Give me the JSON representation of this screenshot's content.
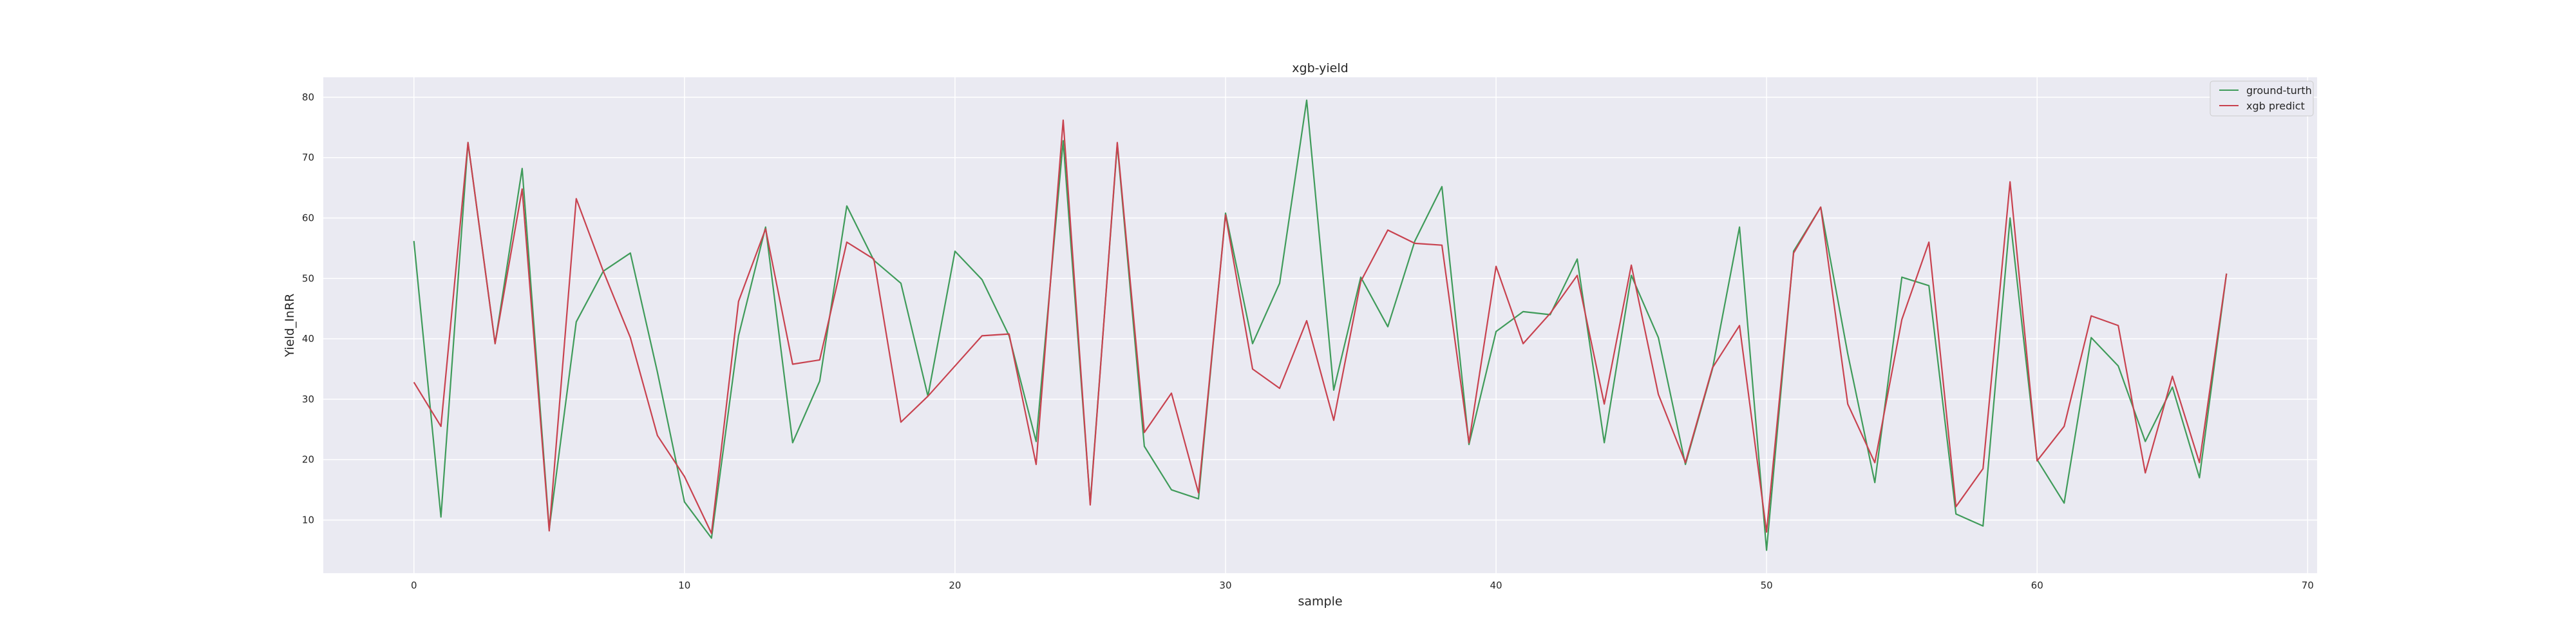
{
  "chart_data": {
    "type": "line",
    "title": "xgb-yield",
    "xlabel": "sample",
    "ylabel": "Yield_InRR",
    "xlim": [
      -3.35,
      70.35
    ],
    "ylim": [
      1.2,
      83.3
    ],
    "xticks": [
      0,
      10,
      20,
      30,
      40,
      50,
      60,
      70
    ],
    "yticks": [
      10,
      20,
      30,
      40,
      50,
      60,
      70,
      80
    ],
    "grid": true,
    "legend_position": "top-right",
    "x": [
      0,
      1,
      2,
      3,
      4,
      5,
      6,
      7,
      8,
      9,
      10,
      11,
      12,
      13,
      14,
      15,
      16,
      17,
      18,
      19,
      20,
      21,
      22,
      23,
      24,
      25,
      26,
      27,
      28,
      29,
      30,
      31,
      32,
      33,
      34,
      35,
      36,
      37,
      38,
      39,
      40,
      41,
      42,
      43,
      44,
      45,
      46,
      47,
      48,
      49,
      50,
      51,
      52,
      53,
      54,
      55,
      56,
      57,
      58,
      59,
      60,
      61,
      62,
      63,
      64,
      65,
      66,
      67
    ],
    "series": [
      {
        "name": "ground-turth",
        "color": "#3f9b5a",
        "values": [
          56.2,
          10.5,
          72.5,
          39.2,
          68.2,
          8.5,
          42.8,
          51.2,
          54.2,
          34.5,
          13.0,
          7.0,
          40.5,
          58.5,
          22.8,
          33.0,
          62.0,
          53.0,
          49.2,
          30.5,
          54.5,
          49.8,
          40.5,
          23.0,
          72.8,
          12.8,
          72.2,
          22.2,
          15.0,
          13.5,
          60.8,
          39.2,
          49.2,
          79.5,
          31.5,
          50.2,
          42.0,
          56.2,
          65.2,
          22.5,
          41.2,
          44.5,
          44.0,
          53.2,
          22.8,
          50.5,
          40.2,
          19.2,
          35.0,
          58.5,
          5.0,
          54.5,
          61.8,
          37.5,
          16.2,
          50.2,
          48.8,
          11.0,
          9.0,
          60.0,
          20.0,
          12.8,
          40.2,
          35.5,
          23.0,
          32.0,
          17.0,
          50.8
        ]
      },
      {
        "name": "xgb predict",
        "color": "#c8424f",
        "values": [
          32.8,
          25.5,
          72.5,
          39.2,
          64.8,
          8.2,
          63.2,
          51.2,
          40.2,
          24.0,
          17.2,
          7.8,
          46.2,
          58.2,
          35.8,
          36.5,
          56.0,
          53.2,
          26.2,
          30.5,
          35.5,
          40.5,
          40.8,
          19.2,
          76.2,
          12.5,
          72.5,
          24.5,
          31.0,
          14.5,
          60.5,
          35.0,
          31.8,
          43.0,
          26.5,
          49.5,
          58.0,
          55.8,
          55.5,
          22.8,
          52.0,
          39.2,
          44.2,
          50.5,
          29.2,
          52.2,
          30.8,
          19.5,
          35.2,
          42.2,
          8.0,
          54.2,
          61.8,
          29.2,
          19.5,
          43.2,
          56.0,
          12.2,
          18.5,
          66.0,
          19.8,
          25.5,
          43.8,
          42.2,
          17.8,
          33.8,
          19.5,
          50.8
        ]
      }
    ]
  }
}
